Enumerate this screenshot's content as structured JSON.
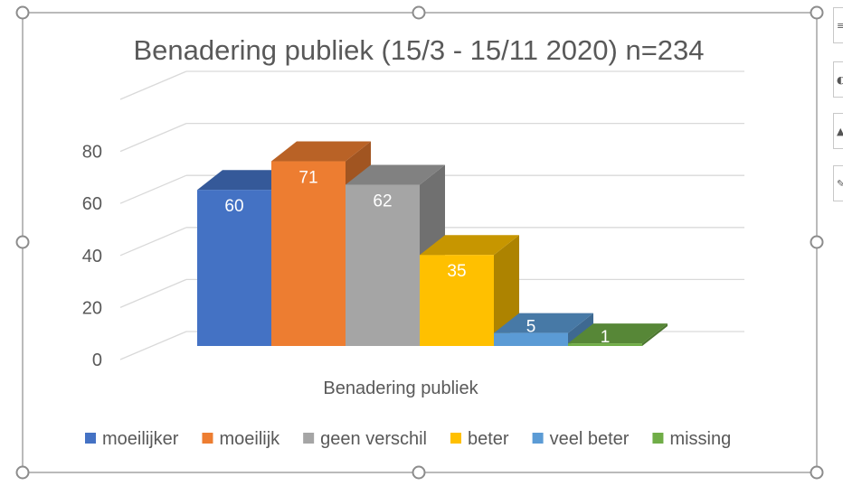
{
  "chart_data": {
    "type": "bar",
    "title": "Benadering publiek (15/3 - 15/11 2020) n=234",
    "xlabel": "Benadering publiek",
    "ylabel": "",
    "categories": [
      "Benadering publiek"
    ],
    "series": [
      {
        "name": "moeilijker",
        "values": [
          60
        ],
        "color": "#4472C4"
      },
      {
        "name": "moeilijk",
        "values": [
          71
        ],
        "color": "#ED7D31"
      },
      {
        "name": "geen verschil",
        "values": [
          62
        ],
        "color": "#A5A5A5"
      },
      {
        "name": "beter",
        "values": [
          35
        ],
        "color": "#FFC000"
      },
      {
        "name": "veel beter",
        "values": [
          5
        ],
        "color": "#5B9BD5"
      },
      {
        "name": "missing",
        "values": [
          1
        ],
        "color": "#70AD47"
      }
    ],
    "yticks": [
      "0",
      "20",
      "40",
      "60",
      "80"
    ],
    "ylim": [
      0,
      80
    ],
    "grid": true,
    "three_d": true,
    "legend_position": "bottom",
    "data_labels": true
  },
  "side_buttons": [
    "chart-elements-icon",
    "chart-styles-icon",
    "chart-filters-icon",
    "pin-icon"
  ]
}
